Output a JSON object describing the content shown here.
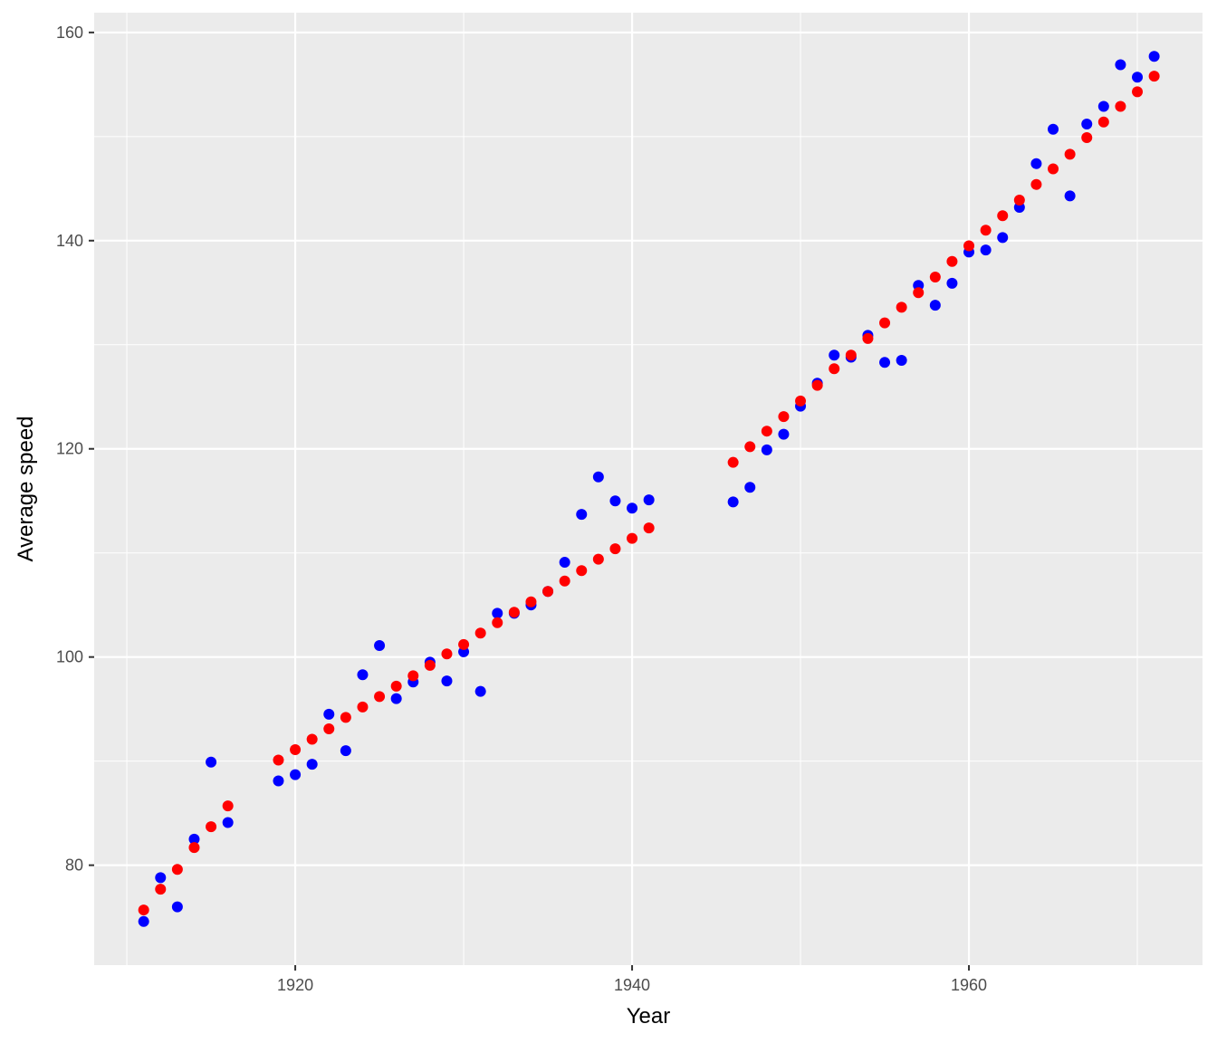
{
  "chart_data": {
    "type": "scatter",
    "x_label": "Year",
    "y_label": "Average speed",
    "x": [
      1911,
      1912,
      1913,
      1914,
      1915,
      1916,
      1919,
      1920,
      1921,
      1922,
      1923,
      1924,
      1925,
      1926,
      1927,
      1928,
      1929,
      1930,
      1931,
      1932,
      1933,
      1934,
      1935,
      1936,
      1937,
      1938,
      1939,
      1940,
      1941,
      1946,
      1947,
      1948,
      1949,
      1950,
      1951,
      1952,
      1953,
      1954,
      1955,
      1956,
      1957,
      1958,
      1959,
      1960,
      1961,
      1962,
      1963,
      1964,
      1965,
      1966,
      1967,
      1968,
      1969,
      1970,
      1971
    ],
    "series": [
      {
        "color": "#0000ff",
        "values": [
          74.6,
          78.8,
          76.0,
          82.5,
          89.9,
          84.1,
          88.1,
          88.7,
          89.7,
          94.5,
          91.0,
          98.3,
          101.1,
          96.0,
          97.6,
          99.5,
          97.7,
          100.5,
          96.7,
          104.2,
          104.2,
          105.0,
          106.3,
          109.1,
          113.7,
          117.3,
          115.0,
          114.3,
          115.1,
          114.9,
          116.3,
          119.9,
          121.4,
          124.1,
          126.3,
          129.0,
          128.8,
          130.9,
          128.3,
          128.5,
          135.7,
          133.8,
          135.9,
          138.9,
          139.1,
          140.3,
          143.2,
          147.4,
          150.7,
          144.3,
          151.2,
          152.9,
          156.9,
          155.7,
          157.7
        ]
      },
      {
        "color": "#ff0000",
        "values": [
          75.7,
          77.7,
          79.6,
          81.7,
          83.7,
          85.7,
          90.1,
          91.1,
          92.1,
          93.1,
          94.2,
          95.2,
          96.2,
          97.2,
          98.2,
          99.2,
          100.3,
          101.2,
          102.3,
          103.3,
          104.3,
          105.3,
          106.3,
          107.3,
          108.3,
          109.4,
          110.4,
          111.4,
          112.4,
          118.7,
          120.2,
          121.7,
          123.1,
          124.6,
          126.1,
          127.7,
          129.0,
          130.6,
          132.1,
          133.6,
          135.0,
          136.5,
          138.0,
          139.5,
          141.0,
          142.4,
          143.9,
          145.4,
          146.9,
          148.3,
          149.9,
          151.4,
          152.9,
          154.3,
          155.8
        ]
      }
    ],
    "xlim": [
      1908.06,
      1973.87
    ],
    "xticks": [
      1920,
      1940,
      1960
    ],
    "ylim": [
      70.4,
      161.9
    ],
    "yticks": [
      80,
      100,
      120,
      140,
      160
    ],
    "grid": true
  }
}
